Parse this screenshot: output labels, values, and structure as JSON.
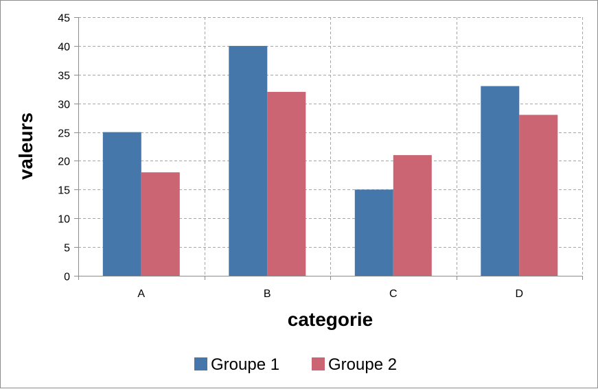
{
  "chart_data": {
    "type": "bar",
    "title": "",
    "xlabel": "categorie",
    "ylabel": "valeurs",
    "categories": [
      "A",
      "B",
      "C",
      "D"
    ],
    "series": [
      {
        "name": "Groupe 1",
        "values": [
          25,
          40,
          15,
          33
        ],
        "color": "#4677AA"
      },
      {
        "name": "Groupe 2",
        "values": [
          18,
          32,
          21,
          28
        ],
        "color": "#CB6473"
      }
    ],
    "ylim": [
      0,
      45
    ],
    "yticks": [
      0,
      5,
      10,
      15,
      20,
      25,
      30,
      35,
      40,
      45
    ],
    "grid": true,
    "grid_style": "dashed",
    "legend_position": "bottom"
  }
}
